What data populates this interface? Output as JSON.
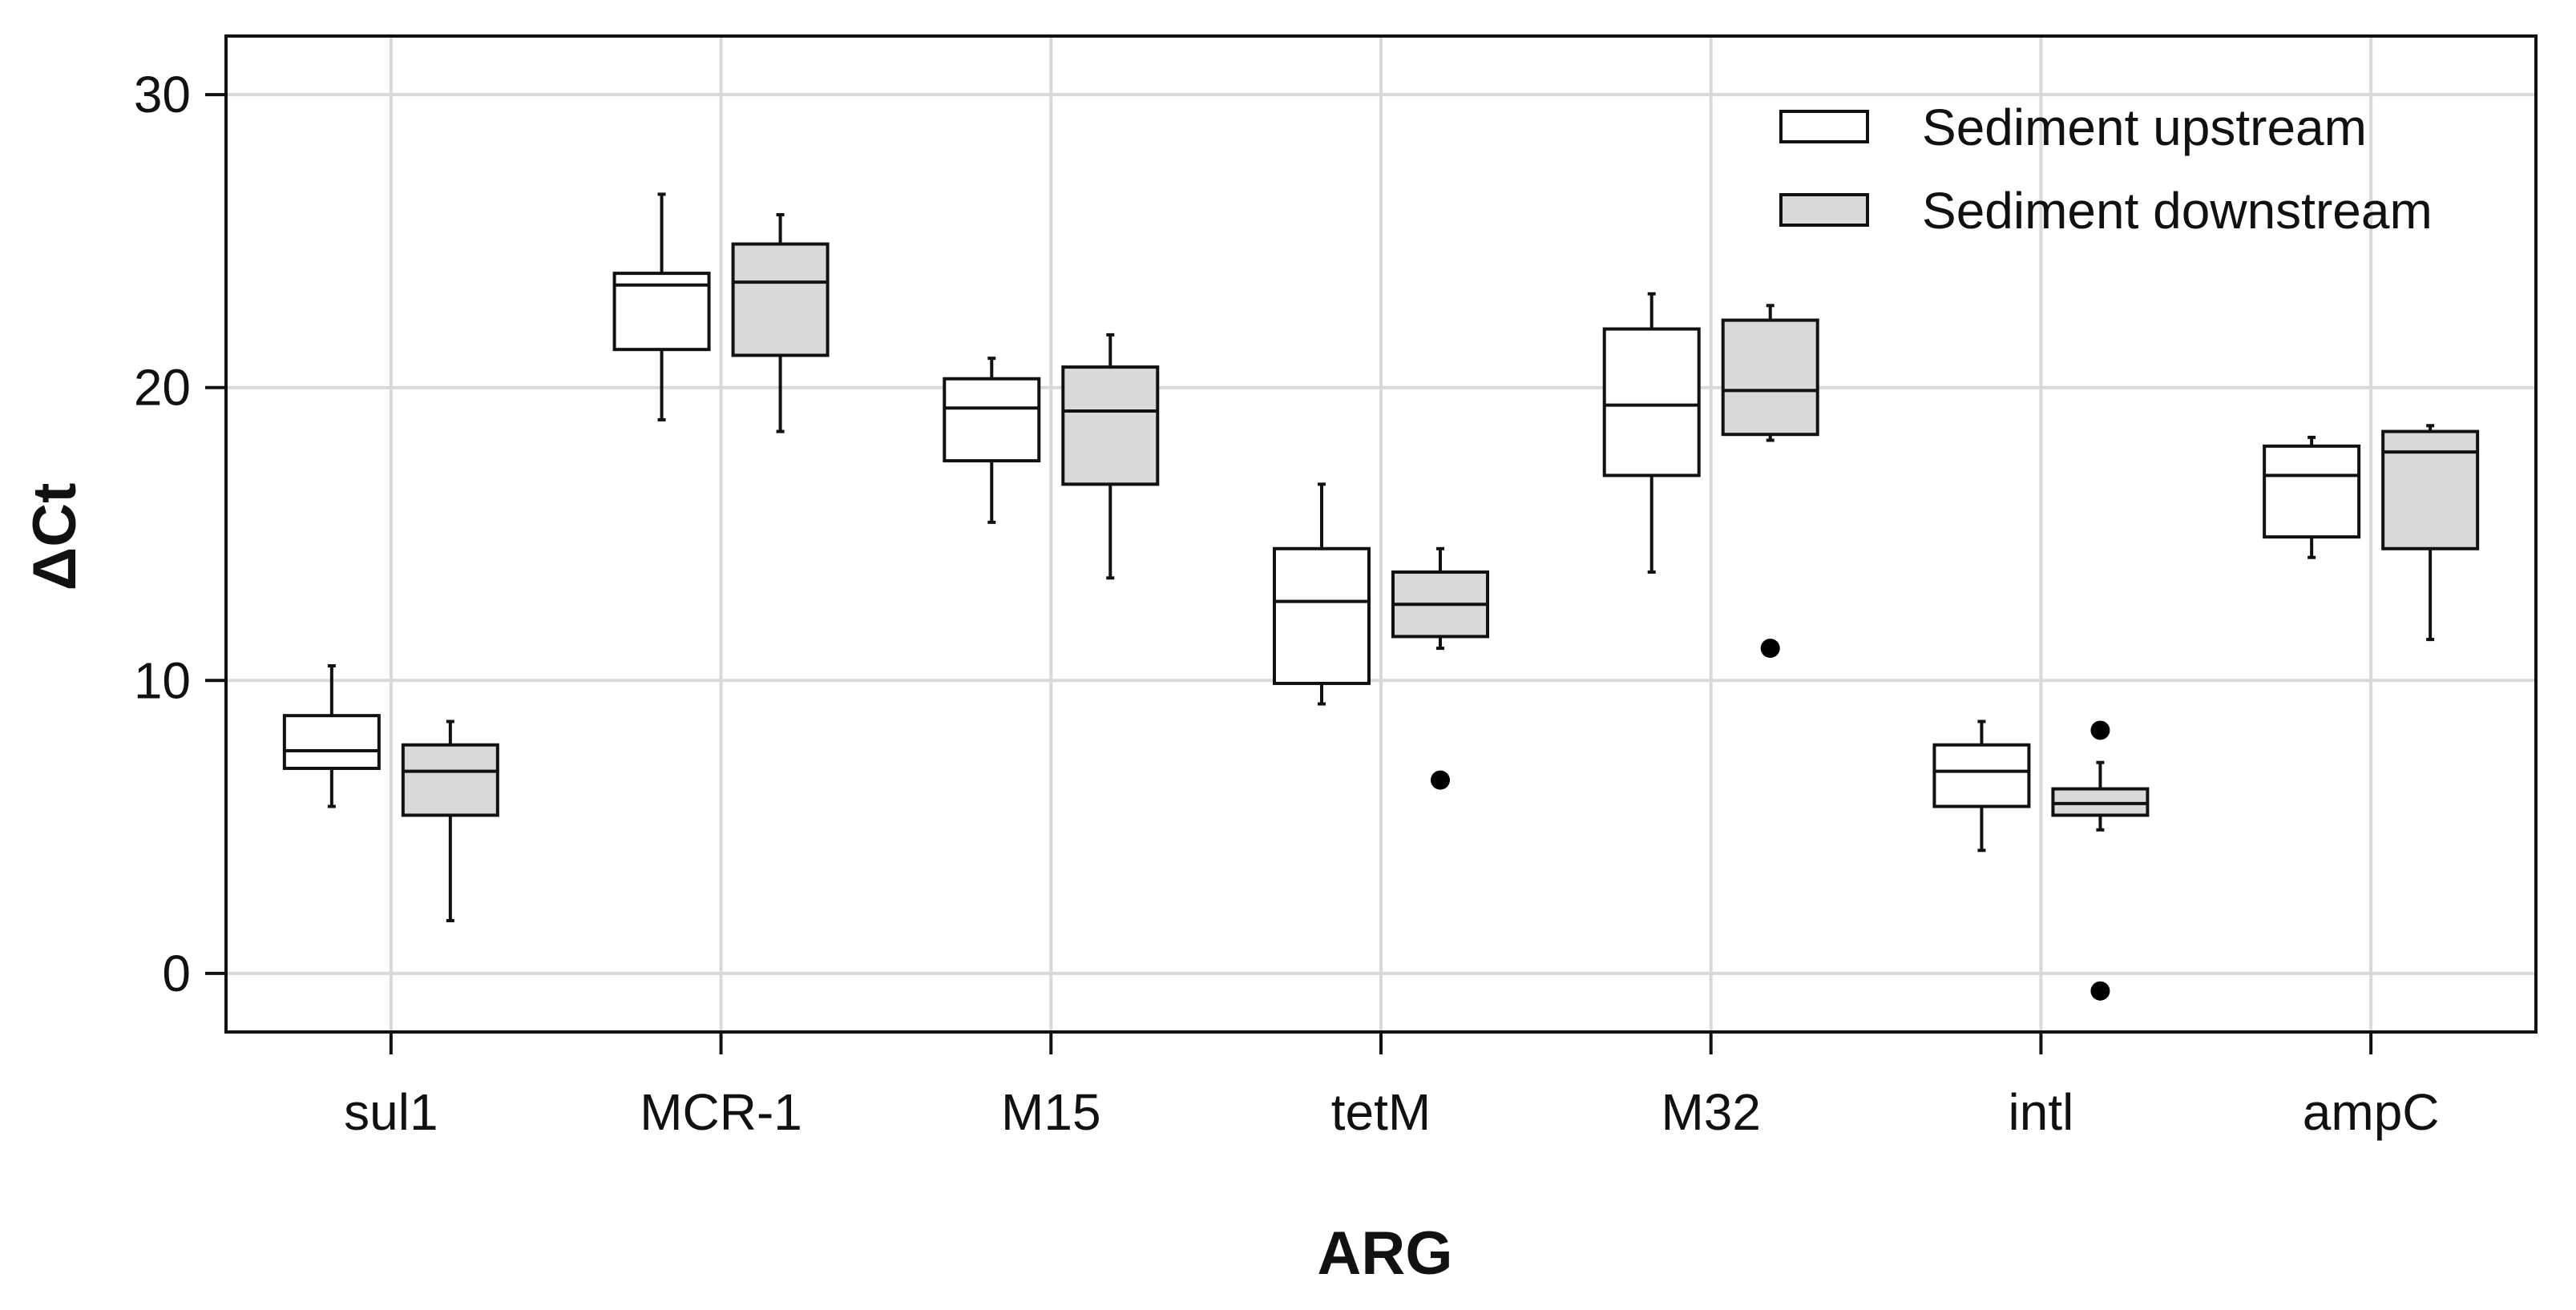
{
  "chart_data": {
    "type": "boxplot",
    "title": "",
    "xlabel": "ARG",
    "ylabel": "ΔCt",
    "ylim": [
      -2,
      32
    ],
    "yticks": [
      0,
      10,
      20,
      30
    ],
    "grid": true,
    "legend_position": "top-right",
    "categories": [
      "sul1",
      "MCR-1",
      "M15",
      "tetM",
      "M32",
      "intl",
      "ampC"
    ],
    "series": [
      {
        "name": "Sediment upstream",
        "color": "#ffffff",
        "boxes": [
          {
            "whisker_low": 5.7,
            "q1": 7.0,
            "median": 7.6,
            "q3": 8.8,
            "whisker_high": 10.5,
            "outliers": []
          },
          {
            "whisker_low": 18.9,
            "q1": 21.3,
            "median": 23.5,
            "q3": 23.9,
            "whisker_high": 26.6,
            "outliers": []
          },
          {
            "whisker_low": 15.4,
            "q1": 17.5,
            "median": 19.3,
            "q3": 20.3,
            "whisker_high": 21.0,
            "outliers": []
          },
          {
            "whisker_low": 9.2,
            "q1": 9.9,
            "median": 12.7,
            "q3": 14.5,
            "whisker_high": 16.7,
            "outliers": []
          },
          {
            "whisker_low": 13.7,
            "q1": 17.0,
            "median": 19.4,
            "q3": 22.0,
            "whisker_high": 23.2,
            "outliers": []
          },
          {
            "whisker_low": 4.2,
            "q1": 5.7,
            "median": 6.9,
            "q3": 7.8,
            "whisker_high": 8.6,
            "outliers": []
          },
          {
            "whisker_low": 14.2,
            "q1": 14.9,
            "median": 17.0,
            "q3": 18.0,
            "whisker_high": 18.3,
            "outliers": []
          }
        ]
      },
      {
        "name": "Sediment downstream",
        "color": "#d9d9d9",
        "boxes": [
          {
            "whisker_low": 1.8,
            "q1": 5.4,
            "median": 6.9,
            "q3": 7.8,
            "whisker_high": 8.6,
            "outliers": []
          },
          {
            "whisker_low": 18.5,
            "q1": 21.1,
            "median": 23.6,
            "q3": 24.9,
            "whisker_high": 25.9,
            "outliers": []
          },
          {
            "whisker_low": 13.5,
            "q1": 16.7,
            "median": 19.2,
            "q3": 20.7,
            "whisker_high": 21.8,
            "outliers": []
          },
          {
            "whisker_low": 11.1,
            "q1": 11.5,
            "median": 12.6,
            "q3": 13.7,
            "whisker_high": 14.5,
            "outliers": [
              6.6
            ]
          },
          {
            "whisker_low": 18.2,
            "q1": 18.4,
            "median": 19.9,
            "q3": 22.3,
            "whisker_high": 22.8,
            "outliers": [
              11.1
            ]
          },
          {
            "whisker_low": 4.9,
            "q1": 5.4,
            "median": 5.8,
            "q3": 6.3,
            "whisker_high": 7.2,
            "outliers": [
              8.3,
              -0.6
            ]
          },
          {
            "whisker_low": 11.4,
            "q1": 14.5,
            "median": 17.8,
            "q3": 18.5,
            "whisker_high": 18.7,
            "outliers": []
          }
        ]
      }
    ]
  }
}
